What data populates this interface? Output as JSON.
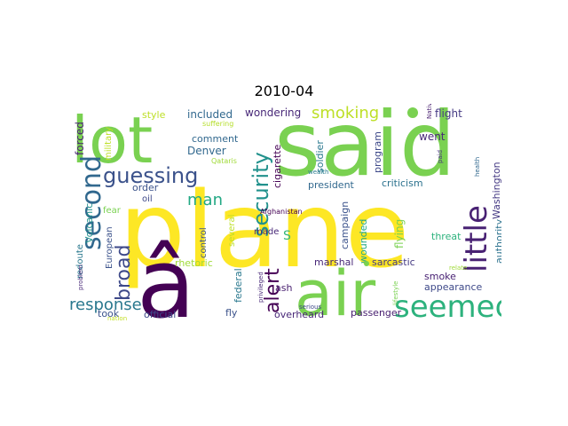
{
  "title": "2010-04",
  "words": [
    {
      "text": "plane",
      "color": "#fde725"
    },
    {
      "text": "said",
      "color": "#7ad151"
    },
    {
      "text": "lot",
      "color": "#7ad151"
    },
    {
      "text": "air",
      "color": "#7ad151"
    },
    {
      "text": "â",
      "color": "#440154"
    },
    {
      "text": "seemed",
      "color": "#2db27d"
    },
    {
      "text": "little",
      "color": "#482173"
    },
    {
      "text": "second",
      "color": "#31688e"
    },
    {
      "text": "guessing",
      "color": "#3b528b"
    },
    {
      "text": "security",
      "color": "#21918c"
    },
    {
      "text": "broad",
      "color": "#3e4989"
    },
    {
      "text": "alert",
      "color": "#440154"
    },
    {
      "text": "response",
      "color": "#2a788e"
    },
    {
      "text": "smoking",
      "color": "#bddf26"
    },
    {
      "text": "man",
      "color": "#22a884"
    },
    {
      "text": "S",
      "color": "#35b779"
    },
    {
      "text": "included",
      "color": "#31688e"
    },
    {
      "text": "wondering",
      "color": "#482878"
    },
    {
      "text": "flight",
      "color": "#443983"
    },
    {
      "text": "style",
      "color": "#bddf26"
    },
    {
      "text": "military",
      "color": "#bddf26"
    },
    {
      "text": "forced",
      "color": "#482173"
    },
    {
      "text": "comment",
      "color": "#31688e"
    },
    {
      "text": "Denver",
      "color": "#31688e"
    },
    {
      "text": "cigarette",
      "color": "#440154"
    },
    {
      "text": "soldier",
      "color": "#2a788e"
    },
    {
      "text": "program",
      "color": "#3e4989"
    },
    {
      "text": "went",
      "color": "#482878"
    },
    {
      "text": "Washington",
      "color": "#443983"
    },
    {
      "text": "health",
      "color": "#31688e"
    },
    {
      "text": "Native",
      "color": "#481f70"
    },
    {
      "text": "paid",
      "color": "#46327e"
    },
    {
      "text": "suffering",
      "color": "#b5de2b"
    },
    {
      "text": "Qataris",
      "color": "#a0da39"
    },
    {
      "text": "wealth",
      "color": "#287c8e"
    },
    {
      "text": "president",
      "color": "#31688e"
    },
    {
      "text": "criticism",
      "color": "#2c728e"
    },
    {
      "text": "order",
      "color": "#3b528b"
    },
    {
      "text": "oil",
      "color": "#3e4989"
    },
    {
      "text": "fear",
      "color": "#7ad151"
    },
    {
      "text": "Volcanic",
      "color": "#21918c"
    },
    {
      "text": "redoute",
      "color": "#2a788e"
    },
    {
      "text": "European",
      "color": "#3b528b"
    },
    {
      "text": "control",
      "color": "#3b528b"
    },
    {
      "text": "several",
      "color": "#bddf26"
    },
    {
      "text": "Afghanistan",
      "color": "#440154"
    },
    {
      "text": "made",
      "color": "#482878"
    },
    {
      "text": "campaign",
      "color": "#3b528b"
    },
    {
      "text": "wounded",
      "color": "#22a884"
    },
    {
      "text": "flying",
      "color": "#7ad151"
    },
    {
      "text": "authority",
      "color": "#2c728e"
    },
    {
      "text": "threat",
      "color": "#2db27d"
    },
    {
      "text": "marshal",
      "color": "#482878"
    },
    {
      "text": "sarcastic",
      "color": "#443983"
    },
    {
      "text": "smoke",
      "color": "#482173"
    },
    {
      "text": "appearance",
      "color": "#3e4989"
    },
    {
      "text": "relate",
      "color": "#a0da39"
    },
    {
      "text": "problem",
      "color": "#482878"
    },
    {
      "text": "rhetoric",
      "color": "#a0da39"
    },
    {
      "text": "federal",
      "color": "#2a788e"
    },
    {
      "text": "privileged",
      "color": "#482878"
    },
    {
      "text": "ash",
      "color": "#481f70"
    },
    {
      "text": "serious",
      "color": "#3e4989"
    },
    {
      "text": "lifestyle",
      "color": "#7ad151"
    },
    {
      "text": "took",
      "color": "#3b528b"
    },
    {
      "text": "nation",
      "color": "#c2df23"
    },
    {
      "text": "official",
      "color": "#3e4989"
    },
    {
      "text": "fly",
      "color": "#3b528b"
    },
    {
      "text": "overheard",
      "color": "#482878"
    },
    {
      "text": "passenger",
      "color": "#481f70"
    }
  ]
}
